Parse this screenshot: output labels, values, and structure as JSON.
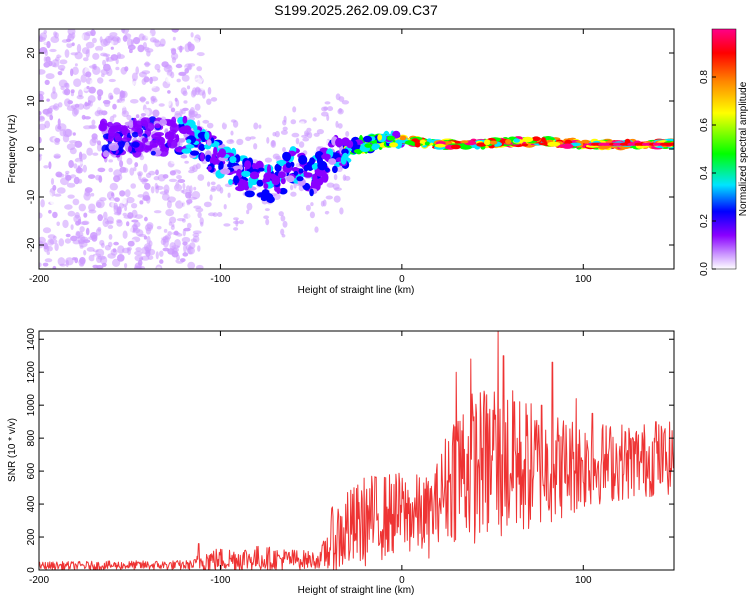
{
  "title": "S199.2025.262.09.09.C37",
  "chart_data": [
    {
      "type": "heatmap",
      "name": "spectrogram",
      "xlabel": "Height of straight line (km)",
      "ylabel": "Frequency (Hz)",
      "xlim": [
        -200,
        150
      ],
      "ylim": [
        -25,
        25
      ],
      "x_ticks": [
        -200,
        -100,
        0,
        100
      ],
      "y_ticks": [
        -20,
        -10,
        0,
        10,
        20
      ],
      "colorbar": {
        "label": "Normalized spectral amplitude",
        "range": [
          0.0,
          1.0
        ],
        "ticks": [
          0.0,
          0.2,
          0.4,
          0.6,
          0.8
        ],
        "colormap": [
          "#ffffff",
          "#cc99ff",
          "#8a00ff",
          "#0000ff",
          "#00e5ff",
          "#00ff00",
          "#ffff00",
          "#ff8800",
          "#ff0000",
          "#ff0088"
        ]
      },
      "features": {
        "signal_trace": [
          {
            "x": -160,
            "f": 2.0
          },
          {
            "x": -140,
            "f": 2.5
          },
          {
            "x": -120,
            "f": 3.0
          },
          {
            "x": -100,
            "f": -2.0
          },
          {
            "x": -85,
            "f": -6.0
          },
          {
            "x": -70,
            "f": -8.0
          },
          {
            "x": -60,
            "f": -3.0
          },
          {
            "x": -50,
            "f": -6.0
          },
          {
            "x": -40,
            "f": -2.0
          },
          {
            "x": -30,
            "f": 0.0
          },
          {
            "x": -15,
            "f": 1.5
          },
          {
            "x": 0,
            "f": 2.0
          },
          {
            "x": 20,
            "f": 1.0
          },
          {
            "x": 40,
            "f": 1.0
          },
          {
            "x": 60,
            "f": 1.5
          },
          {
            "x": 80,
            "f": 1.5
          },
          {
            "x": 100,
            "f": 1.0
          },
          {
            "x": 150,
            "f": 1.0
          }
        ],
        "noise_region_x": [
          -200,
          -115
        ]
      }
    },
    {
      "type": "line",
      "name": "snr",
      "xlabel": "Height of straight line (km)",
      "ylabel": "SNR (10 * v/v)",
      "xlim": [
        -200,
        150
      ],
      "ylim": [
        0,
        1450
      ],
      "x_ticks": [
        -200,
        -100,
        0,
        100
      ],
      "y_ticks": [
        0,
        200,
        400,
        600,
        800,
        1000,
        1200,
        1400
      ],
      "color": "#ee3333",
      "envelope": [
        {
          "x": -200,
          "base": 25,
          "amp": 25
        },
        {
          "x": -115,
          "base": 30,
          "amp": 30
        },
        {
          "x": -110,
          "base": 60,
          "amp": 70
        },
        {
          "x": -80,
          "base": 70,
          "amp": 80
        },
        {
          "x": -45,
          "base": 60,
          "amp": 50
        },
        {
          "x": -38,
          "base": 180,
          "amp": 220
        },
        {
          "x": -20,
          "base": 300,
          "amp": 280
        },
        {
          "x": 0,
          "base": 350,
          "amp": 250
        },
        {
          "x": 15,
          "base": 320,
          "amp": 250
        },
        {
          "x": 20,
          "base": 420,
          "amp": 250
        },
        {
          "x": 30,
          "base": 620,
          "amp": 450
        },
        {
          "x": 55,
          "base": 640,
          "amp": 500
        },
        {
          "x": 80,
          "base": 620,
          "amp": 350
        },
        {
          "x": 110,
          "base": 650,
          "amp": 250
        },
        {
          "x": 150,
          "base": 680,
          "amp": 220
        }
      ],
      "peaks": [
        {
          "x": -112,
          "y": 160
        },
        {
          "x": -30,
          "y": 470
        },
        {
          "x": 30,
          "y": 1200
        },
        {
          "x": 38,
          "y": 1280
        },
        {
          "x": 45,
          "y": 980
        },
        {
          "x": 51,
          "y": 1080
        },
        {
          "x": 53,
          "y": 1450
        },
        {
          "x": 56,
          "y": 1300
        },
        {
          "x": 62,
          "y": 1020
        },
        {
          "x": 77,
          "y": 1000
        },
        {
          "x": 83,
          "y": 1260
        },
        {
          "x": 96,
          "y": 1040
        },
        {
          "x": 105,
          "y": 950
        },
        {
          "x": 140,
          "y": 900
        }
      ]
    }
  ]
}
